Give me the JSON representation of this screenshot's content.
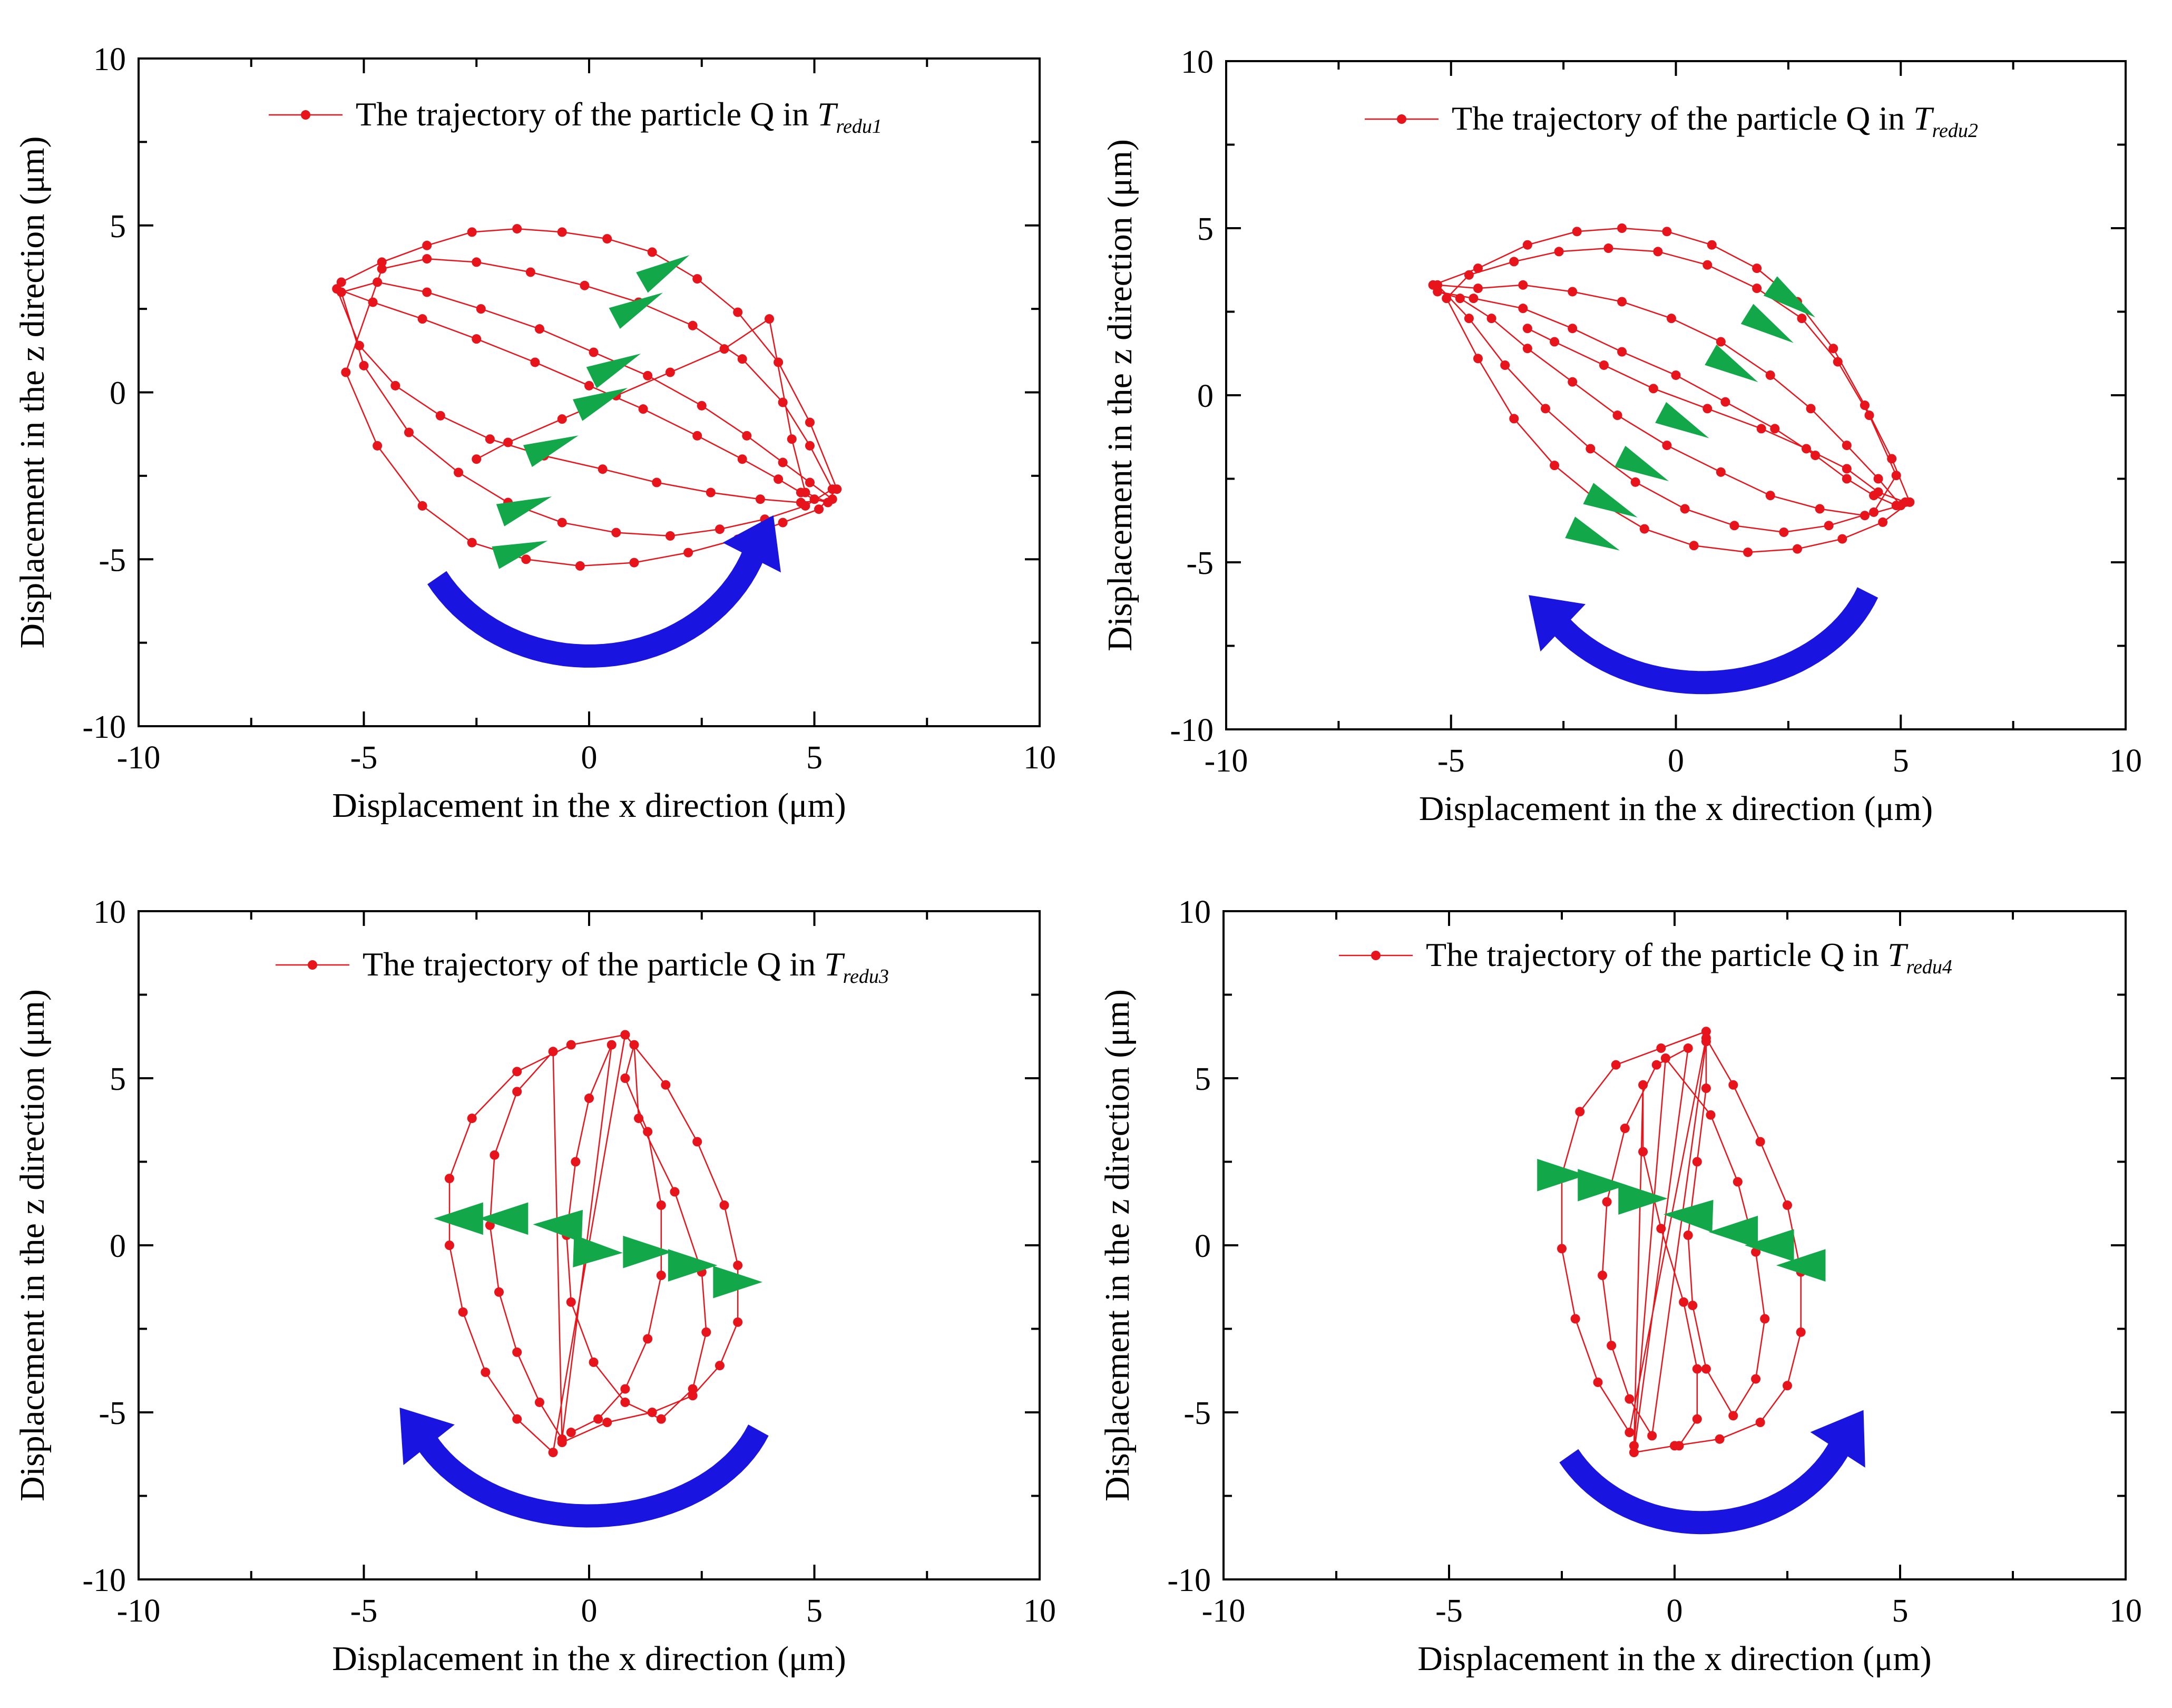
{
  "colors": {
    "trajectory": "#e8141c",
    "direction_marker": "#12a84a",
    "rotation_arrow": "#1a14e0",
    "axis": "#000000",
    "background": "#ffffff"
  },
  "chart_data": [
    {
      "type": "scatter",
      "panel": "top-left",
      "xlabel": "Displacement in the x direction (μm)",
      "ylabel": "Displacement in the z direction (μm)",
      "xlim": [
        -10,
        10
      ],
      "ylim": [
        -10,
        10
      ],
      "xticks": [
        "-10",
        "-5",
        "0",
        "5",
        "10"
      ],
      "yticks": [
        "-10",
        "-5",
        "0",
        "5",
        "10"
      ],
      "grid": false,
      "legend": {
        "position": "top",
        "text": "The trajectory of the particle Q in",
        "symbol": "T",
        "subscript": "redu1"
      },
      "series": [
        {
          "name": "The trajectory of the particle Q in Tredu1",
          "x": [
            -5.5,
            -4.6,
            -3.6,
            -2.6,
            -1.6,
            -0.6,
            0.4,
            1.4,
            2.4,
            3.3,
            4.2,
            4.9,
            5.5,
            5.1,
            4.3,
            3.3,
            2.2,
            1.0,
            -0.2,
            -1.4,
            -2.6,
            -3.7,
            -4.7,
            -5.4,
            -4.6,
            -3.6,
            -2.5,
            -1.3,
            -0.1,
            1.1,
            2.3,
            3.4,
            4.3,
            4.9,
            5.4,
            4.8,
            3.9,
            2.9,
            1.8,
            0.6,
            -0.6,
            -1.8,
            -2.9,
            -4.0,
            -5.0,
            -5.5,
            -4.7,
            -3.6,
            -2.4,
            -1.1,
            0.1,
            1.3,
            2.5,
            3.5,
            4.3,
            4.9,
            5.4,
            4.7,
            3.8,
            2.7,
            1.5,
            0.3,
            -1.0,
            -2.2,
            -3.3,
            -4.3,
            -5.1,
            -5.6,
            -4.8,
            -3.7,
            -2.5,
            -1.2,
            0.0,
            1.2,
            2.4,
            3.4,
            4.2,
            4.7,
            5.0,
            5.3,
            4.8,
            4.5,
            4.0,
            3.0,
            1.8,
            0.6,
            -0.6,
            -1.8,
            -2.5
          ],
          "y": [
            3.3,
            3.9,
            4.4,
            4.8,
            4.9,
            4.8,
            4.6,
            4.2,
            3.4,
            2.4,
            0.9,
            -0.9,
            -2.9,
            -3.5,
            -3.9,
            -4.4,
            -4.8,
            -5.1,
            -5.2,
            -5.0,
            -4.5,
            -3.4,
            -1.6,
            0.6,
            3.7,
            4.0,
            3.9,
            3.6,
            3.2,
            2.7,
            2.0,
            1.0,
            -0.3,
            -1.6,
            -2.9,
            -3.4,
            -3.8,
            -4.1,
            -4.3,
            -4.2,
            -3.9,
            -3.3,
            -2.4,
            -1.2,
            0.8,
            3.0,
            3.3,
            3.0,
            2.5,
            1.9,
            1.2,
            0.5,
            -0.4,
            -1.3,
            -2.1,
            -2.7,
            -3.2,
            -3.3,
            -3.2,
            -3.0,
            -2.7,
            -2.3,
            -1.9,
            -1.4,
            -0.7,
            0.2,
            1.4,
            3.1,
            2.7,
            2.2,
            1.6,
            0.9,
            0.2,
            -0.5,
            -1.3,
            -2.0,
            -2.6,
            -3.0,
            -3.2,
            -3.3,
            -3.0,
            -1.4,
            2.2,
            1.3,
            0.6,
            -0.1,
            -0.8,
            -1.5,
            -2.0
          ]
        }
      ]
    },
    {
      "type": "scatter",
      "panel": "top-right",
      "xlabel": "Displacement in the x direction (μm)",
      "ylabel": "Displacement in the z direction (μm)",
      "xlim": [
        -10,
        10
      ],
      "ylim": [
        -10,
        10
      ],
      "xticks": [
        "-10",
        "-5",
        "0",
        "5",
        "10"
      ],
      "yticks": [
        "-10",
        "-5",
        "0",
        "5",
        "10"
      ],
      "grid": false,
      "legend": {
        "position": "top",
        "text": "The trajectory of the particle Q in",
        "symbol": "T",
        "subscript": "redu2"
      },
      "series": [
        {
          "name": "The trajectory of the particle Q in Tredu2",
          "x": [
            -5.4,
            -4.4,
            -3.3,
            -2.2,
            -1.2,
            -0.2,
            0.8,
            1.8,
            2.7,
            3.5,
            4.2,
            4.8,
            5.2,
            4.6,
            3.7,
            2.7,
            1.6,
            0.4,
            -0.7,
            -1.7,
            -2.7,
            -3.6,
            -4.4,
            -5.1,
            -4.6,
            -3.6,
            -2.6,
            -1.5,
            -0.4,
            0.7,
            1.8,
            2.8,
            3.6,
            4.3,
            4.9,
            4.4,
            3.4,
            2.4,
            1.3,
            0.2,
            -0.9,
            -1.9,
            -2.9,
            -3.8,
            -4.6,
            -5.3,
            -4.4,
            -3.4,
            -2.3,
            -1.2,
            -0.1,
            1.0,
            2.1,
            3.0,
            3.8,
            4.5,
            5.0,
            4.2,
            3.2,
            2.1,
            1.0,
            -0.2,
            -1.3,
            -2.3,
            -3.3,
            -4.1,
            -4.8,
            -5.3,
            -4.5,
            -3.4,
            -2.3,
            -1.2,
            0.0,
            1.1,
            2.2,
            3.1,
            3.8,
            4.4,
            4.9,
            5.1,
            4.5,
            3.8,
            2.9,
            1.9,
            0.7,
            -0.5,
            -1.6,
            -2.7,
            -3.3
          ],
          "y": [
            3.3,
            3.8,
            4.5,
            4.9,
            5.0,
            4.9,
            4.5,
            3.8,
            2.8,
            1.4,
            -0.3,
            -1.9,
            -3.2,
            -3.8,
            -4.3,
            -4.6,
            -4.7,
            -4.5,
            -4.0,
            -3.2,
            -2.1,
            -0.7,
            1.1,
            2.9,
            3.6,
            4.0,
            4.3,
            4.4,
            4.3,
            3.9,
            3.2,
            2.3,
            1.0,
            -0.6,
            -2.4,
            -3.5,
            -3.9,
            -4.1,
            -3.9,
            -3.4,
            -2.6,
            -1.6,
            -0.4,
            0.9,
            2.3,
            3.3,
            3.2,
            3.3,
            3.1,
            2.8,
            2.3,
            1.6,
            0.6,
            -0.4,
            -1.5,
            -2.5,
            -3.3,
            -3.6,
            -3.4,
            -3.0,
            -2.3,
            -1.5,
            -0.6,
            0.4,
            1.4,
            2.3,
            2.9,
            3.1,
            2.9,
            2.6,
            2.0,
            1.3,
            0.6,
            -0.2,
            -1.0,
            -1.8,
            -2.5,
            -3.0,
            -3.3,
            -3.2,
            -2.9,
            -2.2,
            -1.6,
            -1.0,
            -0.4,
            0.2,
            0.9,
            1.6,
            2.0
          ]
        }
      ]
    },
    {
      "type": "scatter",
      "panel": "bottom-left",
      "xlabel": "Displacement in the x direction (μm)",
      "ylabel": "Displacement in the z direction (μm)",
      "xlim": [
        -10,
        10
      ],
      "ylim": [
        -10,
        10
      ],
      "xticks": [
        "-10",
        "-5",
        "0",
        "5",
        "10"
      ],
      "yticks": [
        "-10",
        "-5",
        "0",
        "5",
        "10"
      ],
      "grid": false,
      "legend": {
        "position": "top",
        "text": "The trajectory of the particle Q in",
        "symbol": "T",
        "subscript": "redu3"
      },
      "series": [
        {
          "name": "The trajectory of the particle Q in Tredu3",
          "x": [
            0.8,
            -0.4,
            -1.6,
            -2.6,
            -3.1,
            -3.1,
            -2.8,
            -2.3,
            -1.6,
            -0.8,
            0.8,
            1.7,
            2.4,
            3.0,
            3.3,
            3.3,
            2.9,
            2.3,
            1.4,
            0.4,
            -0.6,
            -0.8,
            -1.6,
            -2.1,
            -2.2,
            -2.0,
            -1.6,
            -1.1,
            -0.6,
            0.5,
            0.0,
            -0.3,
            -0.5,
            -0.4,
            0.1,
            0.8,
            1.6,
            2.3,
            2.6,
            2.5,
            1.9,
            1.1,
            1.0,
            0.8,
            1.3,
            1.6,
            1.6,
            1.3,
            0.8,
            0.2,
            -0.4
          ],
          "y": [
            6.3,
            6.0,
            5.2,
            3.8,
            2.0,
            0.0,
            -2.0,
            -3.8,
            -5.2,
            -6.2,
            6.3,
            4.8,
            3.1,
            1.2,
            -0.6,
            -2.3,
            -3.6,
            -4.5,
            -5.0,
            -5.3,
            -5.9,
            5.8,
            4.6,
            2.7,
            0.6,
            -1.4,
            -3.2,
            -4.7,
            -5.8,
            6.0,
            4.4,
            2.5,
            0.3,
            -1.7,
            -3.5,
            -4.7,
            -5.2,
            -4.3,
            -2.6,
            -0.8,
            1.6,
            3.8,
            6.0,
            5.0,
            3.4,
            1.2,
            -0.9,
            -2.8,
            -4.3,
            -5.2,
            -5.6
          ]
        }
      ]
    },
    {
      "type": "scatter",
      "panel": "bottom-right",
      "xlabel": "Displacement in the x direction (μm)",
      "ylabel": "Displacement in the z direction (μm)",
      "xlim": [
        -10,
        10
      ],
      "ylim": [
        -10,
        10
      ],
      "xticks": [
        "-10",
        "-5",
        "0",
        "5",
        "10"
      ],
      "yticks": [
        "-10",
        "-5",
        "0",
        "5",
        "10"
      ],
      "grid": false,
      "legend": {
        "position": "top",
        "text": "The trajectory of the particle Q in",
        "symbol": "T",
        "subscript": "redu4"
      },
      "series": [
        {
          "name": "The trajectory of the particle Q in Tredu4",
          "x": [
            0.7,
            -0.3,
            -1.3,
            -2.1,
            -2.5,
            -2.5,
            -2.2,
            -1.7,
            -1.0,
            0.7,
            1.3,
            1.9,
            2.5,
            2.8,
            2.8,
            2.5,
            1.9,
            1.0,
            0.0,
            -0.9,
            0.3,
            -0.4,
            -1.1,
            -1.5,
            -1.6,
            -1.4,
            -1.0,
            -0.5,
            0.7,
            0.7,
            0.5,
            0.3,
            0.4,
            0.7,
            1.3,
            1.8,
            2.0,
            1.8,
            1.4,
            0.8,
            -0.2,
            -0.9,
            -0.7,
            -0.7,
            -0.3,
            0.2,
            0.5,
            0.5,
            0.1
          ],
          "y": [
            6.4,
            5.9,
            5.4,
            4.0,
            2.1,
            -0.1,
            -2.2,
            -4.1,
            -5.6,
            6.2,
            4.8,
            3.1,
            1.2,
            -0.8,
            -2.6,
            -4.2,
            -5.3,
            -5.8,
            -6.0,
            -6.2,
            5.9,
            5.4,
            3.5,
            1.3,
            -0.9,
            -3.0,
            -4.6,
            -5.7,
            6.1,
            4.7,
            2.5,
            0.3,
            -1.8,
            -3.7,
            -5.1,
            -4.0,
            -2.2,
            -0.2,
            1.9,
            3.9,
            5.6,
            -6.0,
            4.8,
            2.8,
            0.5,
            -1.7,
            -3.7,
            -5.2,
            -6.0
          ]
        }
      ]
    }
  ]
}
